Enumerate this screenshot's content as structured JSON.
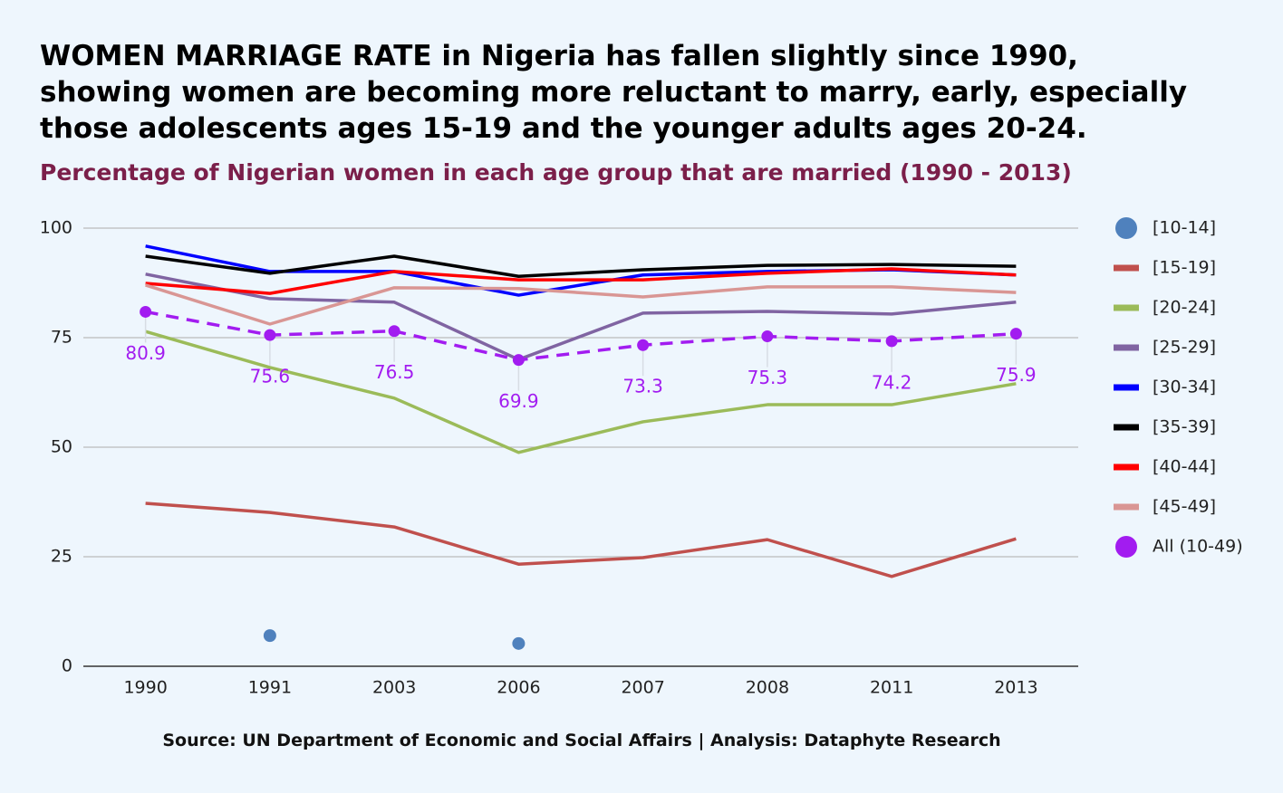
{
  "chart_data": {
    "type": "line",
    "title": "WOMEN MARRIAGE RATE in Nigeria has fallen slightly since 1990, showing women are becoming more reluctant to marry, early, especially those adolescents ages 15-19 and the younger adults ages 20-24.",
    "subtitle": "Percentage of Nigerian women in each age group that are married (1990 - 2013)",
    "source": "Source: UN Department of Economic and Social Affairs | Analysis: Dataphyte Research",
    "categories": [
      "1990",
      "1991",
      "2003",
      "2006",
      "2007",
      "2008",
      "2011",
      "2013"
    ],
    "ylim": [
      0,
      100
    ],
    "yticks": [
      0,
      25,
      50,
      75,
      100
    ],
    "grid": true,
    "legend": "right",
    "series": [
      {
        "name": "[10-14]",
        "color": "#4f81bd",
        "mode": "markers",
        "values": [
          null,
          7.0,
          null,
          5.2,
          null,
          null,
          null,
          null
        ]
      },
      {
        "name": "[15-19]",
        "color": "#c0504d",
        "values": [
          37.2,
          35.1,
          31.8,
          23.3,
          24.8,
          28.9,
          20.5,
          29.1
        ]
      },
      {
        "name": "[20-24]",
        "color": "#9bbb59",
        "values": [
          76.4,
          68.2,
          61.2,
          48.8,
          55.8,
          59.7,
          59.7,
          64.5
        ]
      },
      {
        "name": "[25-29]",
        "color": "#8064a2",
        "values": [
          89.5,
          83.9,
          83.1,
          70.0,
          80.6,
          81.0,
          80.4,
          83.1
        ]
      },
      {
        "name": "[30-34]",
        "color": "#0000ff",
        "values": [
          95.9,
          90.1,
          90.1,
          84.7,
          89.3,
          90.1,
          90.5,
          89.3
        ]
      },
      {
        "name": "[35-39]",
        "color": "#000000",
        "values": [
          93.6,
          89.7,
          93.6,
          89.0,
          90.5,
          91.5,
          91.7,
          91.3
        ]
      },
      {
        "name": "[40-44]",
        "color": "#ff0000",
        "values": [
          87.4,
          85.1,
          90.1,
          88.2,
          88.2,
          89.7,
          90.7,
          89.3
        ]
      },
      {
        "name": "[45-49]",
        "color": "#d99694",
        "values": [
          87.0,
          78.1,
          86.4,
          86.2,
          84.3,
          86.6,
          86.6,
          85.3
        ]
      },
      {
        "name": "All (10-49)",
        "color": "#a21cf0",
        "mode": "lines+markers",
        "dashed": true,
        "data_labels": true,
        "values": [
          80.9,
          75.6,
          76.5,
          69.9,
          73.3,
          75.3,
          74.2,
          75.9
        ]
      }
    ]
  }
}
